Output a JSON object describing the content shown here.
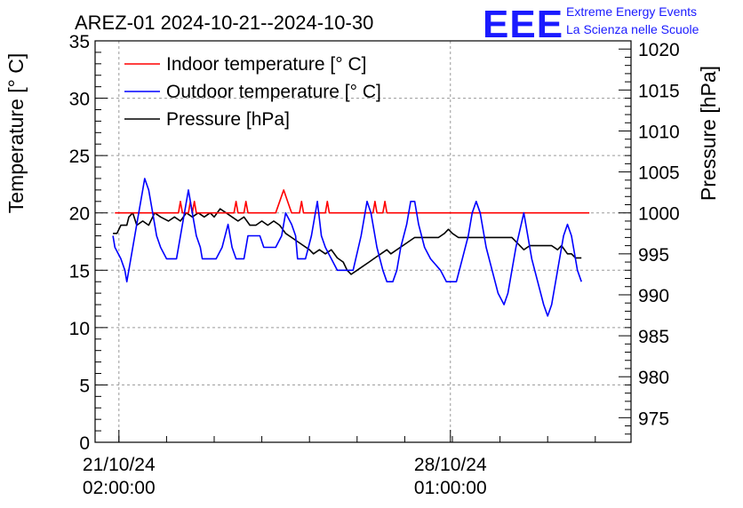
{
  "header": {
    "title": "AREZ-01 2024-10-21--2024-10-30",
    "logo_letters": "EEE",
    "logo_line1": "Extreme Energy Events",
    "logo_line2": "La Scienza nelle Scuole"
  },
  "chart_data": {
    "type": "line",
    "title": "AREZ-01 2024-10-21--2024-10-30",
    "ylabel": "Temperature [° C]",
    "y2label": "Pressure [hPa]",
    "ylim": [
      0,
      35
    ],
    "y2lim": [
      972,
      1021
    ],
    "yticks": [
      0,
      5,
      10,
      15,
      20,
      25,
      30,
      35
    ],
    "y2ticks": [
      975,
      980,
      985,
      990,
      995,
      1000,
      1005,
      1010,
      1015,
      1020
    ],
    "xlim": [
      "2024-10-20 14:00",
      "2024-10-31 20:00"
    ],
    "xticks": [
      {
        "x": "2024-10-21 02:00",
        "label_line1": "21/10/24",
        "label_line2": "02:00:00"
      },
      {
        "x": "2024-10-28 01:00",
        "label_line1": "28/10/24",
        "label_line2": "01:00:00"
      }
    ],
    "grid": true,
    "legend_position": "top-left",
    "colors": {
      "indoor": "#ff0000",
      "outdoor": "#0000ff",
      "pressure": "#000000",
      "logo": "#1a1aff",
      "grid": "#9a9a9a"
    },
    "series": [
      {
        "name": "Indoor temperature [° C]",
        "axis": "left",
        "color": "#ff0000",
        "points": [
          [
            "2024-10-21 00:00",
            20
          ],
          [
            "2024-10-22 08:00",
            20
          ],
          [
            "2024-10-22 09:00",
            21
          ],
          [
            "2024-10-22 10:00",
            20
          ],
          [
            "2024-10-22 13:00",
            20
          ],
          [
            "2024-10-22 14:00",
            21
          ],
          [
            "2024-10-22 15:00",
            20
          ],
          [
            "2024-10-22 16:00",
            21
          ],
          [
            "2024-10-22 17:00",
            20
          ],
          [
            "2024-10-23 12:00",
            20
          ],
          [
            "2024-10-23 13:00",
            21
          ],
          [
            "2024-10-23 14:00",
            20
          ],
          [
            "2024-10-23 17:00",
            20
          ],
          [
            "2024-10-23 18:00",
            21
          ],
          [
            "2024-10-23 19:00",
            20
          ],
          [
            "2024-10-24 09:00",
            20
          ],
          [
            "2024-10-24 11:00",
            21
          ],
          [
            "2024-10-24 13:00",
            22
          ],
          [
            "2024-10-24 15:00",
            21
          ],
          [
            "2024-10-24 17:00",
            20
          ],
          [
            "2024-10-24 21:00",
            20
          ],
          [
            "2024-10-24 22:00",
            21
          ],
          [
            "2024-10-24 23:00",
            20
          ],
          [
            "2024-10-25 10:00",
            20
          ],
          [
            "2024-10-25 11:00",
            21
          ],
          [
            "2024-10-25 12:00",
            20
          ],
          [
            "2024-10-26 10:00",
            20
          ],
          [
            "2024-10-26 11:00",
            21
          ],
          [
            "2024-10-26 12:00",
            20
          ],
          [
            "2024-10-26 15:00",
            20
          ],
          [
            "2024-10-26 16:00",
            21
          ],
          [
            "2024-10-26 17:00",
            20
          ],
          [
            "2024-10-30 23:00",
            20
          ]
        ]
      },
      {
        "name": "Outdoor temperature [° C]",
        "axis": "left",
        "color": "#0000ff",
        "points": [
          [
            "2024-10-20 23:00",
            18
          ],
          [
            "2024-10-21 00:00",
            17
          ],
          [
            "2024-10-21 03:00",
            16
          ],
          [
            "2024-10-21 05:00",
            15
          ],
          [
            "2024-10-21 06:00",
            14
          ],
          [
            "2024-10-21 09:00",
            17
          ],
          [
            "2024-10-21 12:00",
            20
          ],
          [
            "2024-10-21 14:00",
            22
          ],
          [
            "2024-10-21 15:00",
            23
          ],
          [
            "2024-10-21 17:00",
            22
          ],
          [
            "2024-10-21 19:00",
            20
          ],
          [
            "2024-10-21 21:00",
            18
          ],
          [
            "2024-10-21 23:00",
            17
          ],
          [
            "2024-10-22 02:00",
            16
          ],
          [
            "2024-10-22 07:00",
            16
          ],
          [
            "2024-10-22 10:00",
            19
          ],
          [
            "2024-10-22 13:00",
            22
          ],
          [
            "2024-10-22 15:00",
            20
          ],
          [
            "2024-10-22 17:00",
            18
          ],
          [
            "2024-10-22 19:00",
            17
          ],
          [
            "2024-10-22 20:00",
            16
          ],
          [
            "2024-10-23 03:00",
            16
          ],
          [
            "2024-10-23 06:00",
            17
          ],
          [
            "2024-10-23 09:00",
            19
          ],
          [
            "2024-10-23 11:00",
            17
          ],
          [
            "2024-10-23 13:00",
            16
          ],
          [
            "2024-10-23 17:00",
            16
          ],
          [
            "2024-10-23 19:00",
            18
          ],
          [
            "2024-10-24 01:00",
            18
          ],
          [
            "2024-10-24 03:00",
            17
          ],
          [
            "2024-10-24 09:00",
            17
          ],
          [
            "2024-10-24 12:00",
            18
          ],
          [
            "2024-10-24 14:00",
            20
          ],
          [
            "2024-10-24 17:00",
            19
          ],
          [
            "2024-10-24 19:00",
            18
          ],
          [
            "2024-10-24 20:00",
            16
          ],
          [
            "2024-10-25 00:00",
            16
          ],
          [
            "2024-10-25 03:00",
            18
          ],
          [
            "2024-10-25 06:00",
            21
          ],
          [
            "2024-10-25 08:00",
            18
          ],
          [
            "2024-10-25 10:00",
            17
          ],
          [
            "2024-10-25 13:00",
            16
          ],
          [
            "2024-10-25 16:00",
            15
          ],
          [
            "2024-10-26 00:00",
            15
          ],
          [
            "2024-10-26 04:00",
            18
          ],
          [
            "2024-10-26 07:00",
            21
          ],
          [
            "2024-10-26 09:00",
            20
          ],
          [
            "2024-10-26 12:00",
            17
          ],
          [
            "2024-10-26 15:00",
            15
          ],
          [
            "2024-10-26 17:00",
            14
          ],
          [
            "2024-10-26 20:00",
            14
          ],
          [
            "2024-10-26 22:00",
            15
          ],
          [
            "2024-10-27 00:00",
            17
          ],
          [
            "2024-10-27 03:00",
            19
          ],
          [
            "2024-10-27 05:00",
            21
          ],
          [
            "2024-10-27 07:00",
            21
          ],
          [
            "2024-10-27 09:00",
            19
          ],
          [
            "2024-10-27 12:00",
            17
          ],
          [
            "2024-10-27 15:00",
            16
          ],
          [
            "2024-10-27 20:00",
            15
          ],
          [
            "2024-10-27 23:00",
            14
          ],
          [
            "2024-10-28 04:00",
            14
          ],
          [
            "2024-10-28 07:00",
            16
          ],
          [
            "2024-10-28 10:00",
            18
          ],
          [
            "2024-10-28 12:00",
            20
          ],
          [
            "2024-10-28 14:00",
            21
          ],
          [
            "2024-10-28 16:00",
            20
          ],
          [
            "2024-10-28 19:00",
            17
          ],
          [
            "2024-10-28 22:00",
            15
          ],
          [
            "2024-10-29 01:00",
            13
          ],
          [
            "2024-10-29 04:00",
            12
          ],
          [
            "2024-10-29 06:00",
            13
          ],
          [
            "2024-10-29 10:00",
            17
          ],
          [
            "2024-10-29 14:00",
            20
          ],
          [
            "2024-10-29 18:00",
            16
          ],
          [
            "2024-10-29 21:00",
            14
          ],
          [
            "2024-10-30 00:00",
            12
          ],
          [
            "2024-10-30 02:00",
            11
          ],
          [
            "2024-10-30 04:00",
            12
          ],
          [
            "2024-10-30 07:00",
            15
          ],
          [
            "2024-10-30 10:00",
            18
          ],
          [
            "2024-10-30 12:00",
            19
          ],
          [
            "2024-10-30 14:00",
            18
          ],
          [
            "2024-10-30 17:00",
            15
          ],
          [
            "2024-10-30 19:00",
            14
          ]
        ]
      },
      {
        "name": "Pressure [hPa]",
        "axis": "right",
        "color": "#000000",
        "points": [
          [
            "2024-10-20 23:00",
            997.5
          ],
          [
            "2024-10-21 01:00",
            997.5
          ],
          [
            "2024-10-21 03:00",
            998.5
          ],
          [
            "2024-10-21 06:00",
            998.5
          ],
          [
            "2024-10-21 07:00",
            999.5
          ],
          [
            "2024-10-21 09:00",
            1000
          ],
          [
            "2024-10-21 11:00",
            998.5
          ],
          [
            "2024-10-21 14:00",
            999
          ],
          [
            "2024-10-21 17:00",
            998.5
          ],
          [
            "2024-10-21 20:00",
            1000
          ],
          [
            "2024-10-21 23:00",
            999.5
          ],
          [
            "2024-10-22 03:00",
            999
          ],
          [
            "2024-10-22 06:00",
            999.5
          ],
          [
            "2024-10-22 09:00",
            999
          ],
          [
            "2024-10-22 12:00",
            1000
          ],
          [
            "2024-10-22 15:00",
            999.5
          ],
          [
            "2024-10-22 18:00",
            1000
          ],
          [
            "2024-10-22 21:00",
            999.5
          ],
          [
            "2024-10-23 00:00",
            1000
          ],
          [
            "2024-10-23 02:00",
            999.5
          ],
          [
            "2024-10-23 05:00",
            1000.5
          ],
          [
            "2024-10-23 08:00",
            1000
          ],
          [
            "2024-10-23 11:00",
            999.5
          ],
          [
            "2024-10-23 14:00",
            999
          ],
          [
            "2024-10-23 17:00",
            999.5
          ],
          [
            "2024-10-23 20:00",
            998.5
          ],
          [
            "2024-10-23 23:00",
            998.5
          ],
          [
            "2024-10-24 02:00",
            999
          ],
          [
            "2024-10-24 05:00",
            998.5
          ],
          [
            "2024-10-24 08:00",
            999
          ],
          [
            "2024-10-24 11:00",
            998.5
          ],
          [
            "2024-10-24 14:00",
            997.5
          ],
          [
            "2024-10-24 17:00",
            997
          ],
          [
            "2024-10-24 20:00",
            996.5
          ],
          [
            "2024-10-24 23:00",
            996
          ],
          [
            "2024-10-25 02:00",
            995.5
          ],
          [
            "2024-10-25 04:00",
            995
          ],
          [
            "2024-10-25 07:00",
            995.5
          ],
          [
            "2024-10-25 10:00",
            995
          ],
          [
            "2024-10-25 13:00",
            995.5
          ],
          [
            "2024-10-25 16:00",
            994.5
          ],
          [
            "2024-10-25 19:00",
            994
          ],
          [
            "2024-10-25 21:00",
            993
          ],
          [
            "2024-10-25 23:00",
            992.5
          ],
          [
            "2024-10-26 02:00",
            993
          ],
          [
            "2024-10-26 05:00",
            993.5
          ],
          [
            "2024-10-26 08:00",
            994
          ],
          [
            "2024-10-26 11:00",
            994.5
          ],
          [
            "2024-10-26 14:00",
            995
          ],
          [
            "2024-10-26 17:00",
            995.5
          ],
          [
            "2024-10-26 19:00",
            995
          ],
          [
            "2024-10-26 22:00",
            995.5
          ],
          [
            "2024-10-27 01:00",
            996
          ],
          [
            "2024-10-27 04:00",
            996.5
          ],
          [
            "2024-10-27 07:00",
            997
          ],
          [
            "2024-10-27 10:00",
            997
          ],
          [
            "2024-10-27 13:00",
            997
          ],
          [
            "2024-10-27 16:00",
            997
          ],
          [
            "2024-10-27 19:00",
            997
          ],
          [
            "2024-10-27 22:00",
            997.5
          ],
          [
            "2024-10-28 00:00",
            998
          ],
          [
            "2024-10-28 02:00",
            997.5
          ],
          [
            "2024-10-28 05:00",
            997
          ],
          [
            "2024-10-28 08:00",
            997
          ],
          [
            "2024-10-28 11:00",
            997
          ],
          [
            "2024-10-28 14:00",
            997
          ],
          [
            "2024-10-28 17:00",
            997
          ],
          [
            "2024-10-28 20:00",
            997
          ],
          [
            "2024-10-29 00:00",
            997
          ],
          [
            "2024-10-29 04:00",
            997
          ],
          [
            "2024-10-29 08:00",
            997
          ],
          [
            "2024-10-29 12:00",
            996
          ],
          [
            "2024-10-29 14:00",
            995.5
          ],
          [
            "2024-10-29 17:00",
            996
          ],
          [
            "2024-10-29 21:00",
            996
          ],
          [
            "2024-10-30 00:00",
            996
          ],
          [
            "2024-10-30 04:00",
            996
          ],
          [
            "2024-10-30 07:00",
            995.5
          ],
          [
            "2024-10-30 09:00",
            996
          ],
          [
            "2024-10-30 12:00",
            995
          ],
          [
            "2024-10-30 14:00",
            995
          ],
          [
            "2024-10-30 16:00",
            994.5
          ],
          [
            "2024-10-30 19:00",
            994.5
          ]
        ]
      }
    ]
  }
}
